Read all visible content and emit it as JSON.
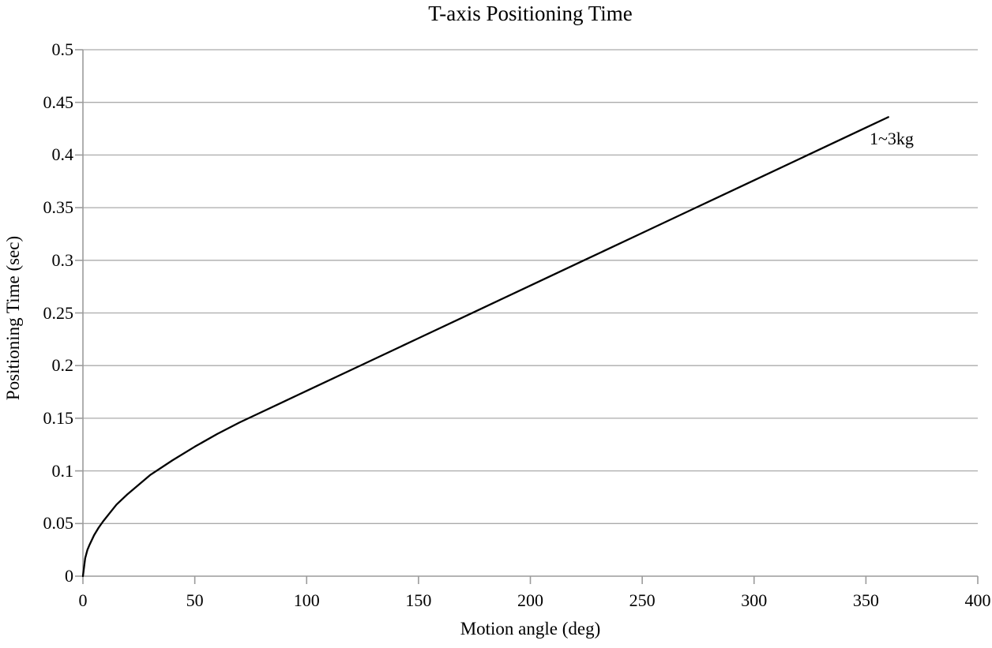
{
  "chart_data": {
    "type": "line",
    "title": "T-axis Positioning Time",
    "xlabel": "Motion angle (deg)",
    "ylabel": "Positioning Time (sec)",
    "xlim": [
      0,
      400
    ],
    "ylim": [
      0,
      0.5
    ],
    "x_ticks": [
      0,
      50,
      100,
      150,
      200,
      250,
      300,
      350,
      400
    ],
    "x_tick_labels": [
      "0",
      "50",
      "100",
      "150",
      "200",
      "250",
      "300",
      "350",
      "400"
    ],
    "y_ticks": [
      0,
      0.05,
      0.1,
      0.15,
      0.2,
      0.25,
      0.3,
      0.35,
      0.4,
      0.45,
      0.5
    ],
    "y_tick_labels": [
      "0",
      "0.05",
      "0.1",
      "0.15",
      "0.2",
      "0.25",
      "0.3",
      "0.35",
      "0.4",
      "0.45",
      "0.5"
    ],
    "grid": "horizontal",
    "legend_position": "none",
    "series": [
      {
        "name": "1~3kg",
        "color": "#000000",
        "x": [
          0,
          1,
          2,
          3,
          5,
          7,
          9,
          12,
          15,
          20,
          25,
          30,
          40,
          50,
          60,
          70,
          76,
          90,
          100,
          125,
          150,
          175,
          200,
          225,
          250,
          275,
          300,
          325,
          350,
          360
        ],
        "y": [
          0,
          0.017,
          0.025,
          0.03,
          0.039,
          0.046,
          0.052,
          0.06,
          0.068,
          0.078,
          0.087,
          0.096,
          0.11,
          0.123,
          0.135,
          0.146,
          0.152,
          0.166,
          0.176,
          0.201,
          0.226,
          0.251,
          0.276,
          0.301,
          0.326,
          0.351,
          0.376,
          0.401,
          0.426,
          0.436
        ]
      }
    ],
    "annotations": [
      {
        "text": "1~3kg",
        "near": {
          "x_deg": 365,
          "y_sec": 0.41
        }
      }
    ]
  },
  "colors": {
    "gridline": "#ababab",
    "axis": "#9b9b9b",
    "tick": "#9b9b9b",
    "curve": "#000000",
    "text": "#000000",
    "background": "#ffffff"
  }
}
